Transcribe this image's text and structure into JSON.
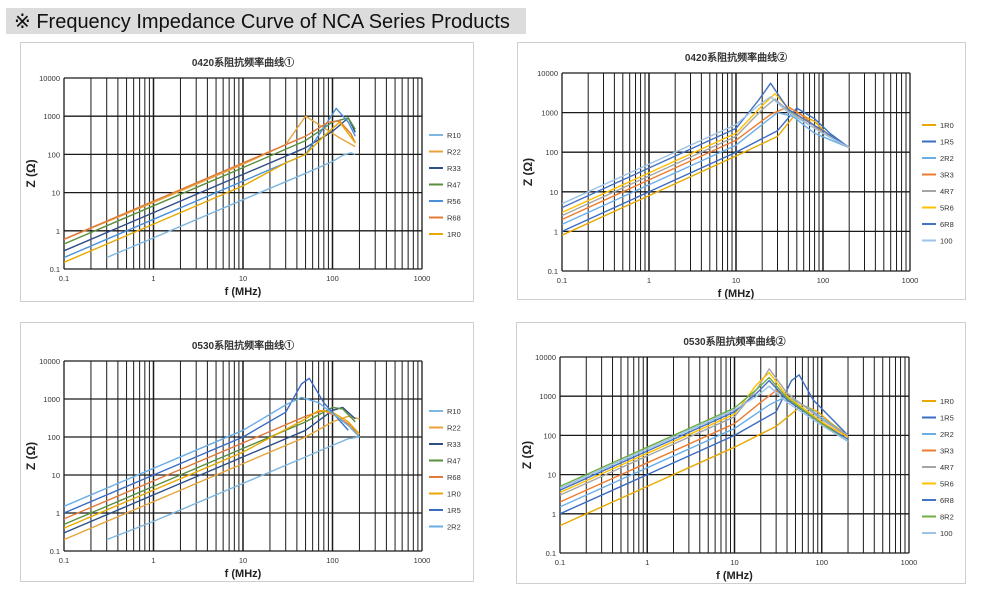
{
  "page": {
    "heading": "※ Frequency Impedance Curve of NCA Series Products"
  },
  "colors": {
    "R10": "#7db6df",
    "R22": "#e8a33a",
    "R33": "#2f4f87",
    "R47": "#5a8f3e",
    "R56": "#4a90d9",
    "R68": "#e07a3a",
    "1R0": "#e8a800",
    "1R5": "#3b6cc4",
    "2R2": "#6aaee8",
    "3R3": "#ec7c30",
    "4R7": "#a5a5a5",
    "5R6": "#ffc000",
    "6R8": "#4472c4",
    "8R2": "#70ad47",
    "100": "#9dc3e6"
  },
  "chart_data": [
    {
      "type": "line",
      "title": "0420系阻抗频率曲线①",
      "xlabel": "f (MHz)",
      "ylabel": "Z (Ω)",
      "xscale": "log",
      "yscale": "log",
      "xlim": [
        0.1,
        1000
      ],
      "ylim": [
        0.1,
        10000
      ],
      "xticks": [
        "0.1",
        "1",
        "10",
        "100",
        "1000"
      ],
      "yticks": [
        "0.1",
        "1",
        "10",
        "100",
        "1000",
        "10000"
      ],
      "grid": true,
      "legend": "right",
      "series": [
        {
          "name": "R10",
          "x": [
            0.3,
            1,
            10,
            50,
            100,
            130,
            160,
            180
          ],
          "y": [
            0.2,
            0.65,
            6.5,
            32,
            65,
            95,
            110,
            100
          ]
        },
        {
          "name": "R22",
          "x": [
            0.1,
            1,
            10,
            30,
            50,
            80,
            120,
            180
          ],
          "y": [
            0.6,
            5.5,
            55,
            180,
            1000,
            500,
            270,
            160
          ]
        },
        {
          "name": "R33",
          "x": [
            0.1,
            1,
            10,
            50,
            100,
            150,
            180
          ],
          "y": [
            0.3,
            3,
            30,
            150,
            400,
            900,
            380
          ]
        },
        {
          "name": "R47",
          "x": [
            0.1,
            1,
            10,
            50,
            100,
            150,
            180
          ],
          "y": [
            0.45,
            4.5,
            45,
            230,
            700,
            900,
            450
          ]
        },
        {
          "name": "R56",
          "x": [
            0.1,
            1,
            10,
            50,
            80,
            110,
            150,
            180
          ],
          "y": [
            0.2,
            2,
            20,
            100,
            500,
            1600,
            700,
            300
          ]
        },
        {
          "name": "R68",
          "x": [
            0.1,
            1,
            10,
            50,
            90,
            120,
            160,
            180
          ],
          "y": [
            0.6,
            6,
            60,
            300,
            700,
            750,
            350,
            200
          ]
        },
        {
          "name": "1R0",
          "x": [
            0.1,
            1,
            10,
            30,
            50,
            80,
            120,
            180
          ],
          "y": [
            0.15,
            1.5,
            15,
            60,
            100,
            300,
            700,
            200
          ]
        }
      ]
    },
    {
      "type": "line",
      "title": "0420系阻抗频率曲线②",
      "xlabel": "f (MHz)",
      "ylabel": "Z (Ω)",
      "xscale": "log",
      "yscale": "log",
      "xlim": [
        0.1,
        1000
      ],
      "ylim": [
        0.1,
        10000
      ],
      "xticks": [
        "0.1",
        "1",
        "10",
        "100",
        "1000"
      ],
      "yticks": [
        "0.1",
        "1",
        "10",
        "100",
        "1000",
        "10000"
      ],
      "grid": true,
      "legend": "right",
      "series": [
        {
          "name": "1R0",
          "x": [
            0.1,
            1,
            10,
            30,
            50,
            80,
            120,
            200
          ],
          "y": [
            0.8,
            8,
            80,
            250,
            1000,
            600,
            250,
            130
          ]
        },
        {
          "name": "1R5",
          "x": [
            0.1,
            1,
            10,
            30,
            50,
            80,
            120,
            200
          ],
          "y": [
            1,
            10,
            100,
            350,
            1300,
            700,
            300,
            130
          ]
        },
        {
          "name": "2R2",
          "x": [
            0.1,
            1,
            10,
            20,
            30,
            45,
            80,
            200
          ],
          "y": [
            1.5,
            15,
            150,
            500,
            1000,
            800,
            300,
            130
          ]
        },
        {
          "name": "3R3",
          "x": [
            0.1,
            1,
            10,
            25,
            40,
            60,
            100,
            200
          ],
          "y": [
            2,
            20,
            200,
            900,
            1400,
            800,
            300,
            130
          ]
        },
        {
          "name": "4R7",
          "x": [
            0.1,
            1,
            10,
            20,
            28,
            45,
            100,
            200
          ],
          "y": [
            2.5,
            25,
            250,
            1200,
            2200,
            900,
            300,
            130
          ]
        },
        {
          "name": "5R6",
          "x": [
            0.1,
            1,
            10,
            20,
            28,
            45,
            100,
            200
          ],
          "y": [
            3,
            30,
            300,
            1500,
            3000,
            1000,
            350,
            130
          ]
        },
        {
          "name": "6R8",
          "x": [
            0.1,
            1,
            10,
            18,
            25,
            40,
            100,
            200
          ],
          "y": [
            4,
            40,
            400,
            2000,
            5500,
            1200,
            350,
            130
          ]
        },
        {
          "name": "100",
          "x": [
            0.1,
            1,
            10,
            18,
            25,
            40,
            100,
            200
          ],
          "y": [
            5,
            50,
            500,
            1500,
            2500,
            1000,
            300,
            130
          ]
        }
      ]
    },
    {
      "type": "line",
      "title": "0530系阻抗频率曲线①",
      "xlabel": "f (MHz)",
      "ylabel": "Z (Ω)",
      "xscale": "log",
      "yscale": "log",
      "xlim": [
        0.1,
        1000
      ],
      "ylim": [
        0.1,
        10000
      ],
      "xticks": [
        "0.1",
        "1",
        "10",
        "100",
        "1000"
      ],
      "yticks": [
        "0.1",
        "1",
        "10",
        "100",
        "1000",
        "10000"
      ],
      "grid": true,
      "legend": "right",
      "series": [
        {
          "name": "R10",
          "x": [
            0.3,
            1,
            10,
            50,
            100,
            150,
            200
          ],
          "y": [
            0.2,
            0.6,
            6,
            30,
            60,
            90,
            100
          ]
        },
        {
          "name": "R22",
          "x": [
            0.1,
            1,
            10,
            50,
            100,
            150,
            200
          ],
          "y": [
            0.2,
            2,
            20,
            100,
            250,
            350,
            300
          ]
        },
        {
          "name": "R33",
          "x": [
            0.1,
            1,
            10,
            50,
            100,
            130,
            180
          ],
          "y": [
            0.3,
            3,
            30,
            150,
            500,
            600,
            300
          ]
        },
        {
          "name": "R47",
          "x": [
            0.1,
            1,
            10,
            50,
            100,
            130,
            180
          ],
          "y": [
            0.5,
            5,
            50,
            250,
            600,
            550,
            250
          ]
        },
        {
          "name": "R68",
          "x": [
            0.1,
            1,
            10,
            50,
            80,
            110,
            160,
            200
          ],
          "y": [
            0.7,
            7,
            70,
            350,
            500,
            350,
            200,
            100
          ]
        },
        {
          "name": "1R0",
          "x": [
            0.1,
            1,
            10,
            50,
            70,
            100,
            150,
            200
          ],
          "y": [
            0.4,
            4,
            40,
            300,
            500,
            450,
            250,
            120
          ]
        },
        {
          "name": "1R5",
          "x": [
            0.1,
            1,
            10,
            30,
            45,
            55,
            80,
            150
          ],
          "y": [
            1,
            10,
            100,
            450,
            2500,
            3500,
            800,
            150
          ]
        },
        {
          "name": "2R2",
          "x": [
            0.1,
            1,
            10,
            30,
            45,
            70,
            150,
            200
          ],
          "y": [
            1.5,
            15,
            150,
            700,
            1100,
            800,
            200,
            100
          ]
        }
      ]
    },
    {
      "type": "line",
      "title": "0530系阻抗频率曲线②",
      "xlabel": "f (MHz)",
      "ylabel": "Z (Ω)",
      "xscale": "log",
      "yscale": "log",
      "xlim": [
        0.1,
        1000
      ],
      "ylim": [
        0.1,
        10000
      ],
      "xticks": [
        "0.1",
        "1",
        "10",
        "100",
        "1000"
      ],
      "yticks": [
        "0.1",
        "1",
        "10",
        "100",
        "1000",
        "10000"
      ],
      "grid": true,
      "legend": "right",
      "series": [
        {
          "name": "1R0",
          "x": [
            0.1,
            1,
            10,
            30,
            60,
            90,
            130,
            200
          ],
          "y": [
            0.5,
            5,
            50,
            170,
            600,
            400,
            200,
            100
          ]
        },
        {
          "name": "1R5",
          "x": [
            0.1,
            1,
            10,
            30,
            45,
            55,
            80,
            200
          ],
          "y": [
            1,
            10,
            100,
            400,
            2500,
            3500,
            800,
            100
          ]
        },
        {
          "name": "2R2",
          "x": [
            0.1,
            1,
            10,
            25,
            40,
            70,
            150,
            200
          ],
          "y": [
            1.5,
            15,
            150,
            600,
            1000,
            500,
            150,
            100
          ]
        },
        {
          "name": "3R3",
          "x": [
            0.1,
            1,
            10,
            20,
            30,
            50,
            100,
            200
          ],
          "y": [
            2,
            20,
            200,
            700,
            1400,
            600,
            200,
            100
          ]
        },
        {
          "name": "4R7",
          "x": [
            0.1,
            1,
            10,
            18,
            25,
            40,
            100,
            200
          ],
          "y": [
            3,
            30,
            300,
            1500,
            5000,
            1200,
            250,
            100
          ]
        },
        {
          "name": "5R6",
          "x": [
            0.1,
            1,
            10,
            18,
            25,
            40,
            100,
            200
          ],
          "y": [
            3.5,
            35,
            350,
            2000,
            4000,
            1000,
            220,
            90
          ]
        },
        {
          "name": "6R8",
          "x": [
            0.1,
            1,
            10,
            18,
            25,
            40,
            100,
            200
          ],
          "y": [
            4,
            40,
            400,
            1200,
            2500,
            800,
            200,
            80
          ]
        },
        {
          "name": "8R2",
          "x": [
            0.1,
            1,
            10,
            18,
            25,
            40,
            100,
            200
          ],
          "y": [
            5,
            50,
            500,
            1500,
            3000,
            900,
            200,
            70
          ]
        },
        {
          "name": "100",
          "x": [
            0.1,
            1,
            10,
            18,
            25,
            40,
            100,
            200
          ],
          "y": [
            4.5,
            45,
            450,
            1000,
            1800,
            700,
            180,
            70
          ]
        }
      ]
    }
  ]
}
